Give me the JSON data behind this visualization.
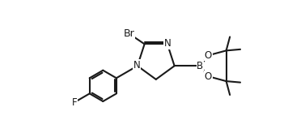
{
  "bg_color": "#ffffff",
  "line_color": "#1a1a1a",
  "line_width": 1.5,
  "font_size": 8.5,
  "figsize": [
    3.56,
    1.64
  ],
  "dpi": 100,
  "xlim": [
    -1.0,
    3.9
  ],
  "ylim": [
    0.5,
    3.5
  ]
}
